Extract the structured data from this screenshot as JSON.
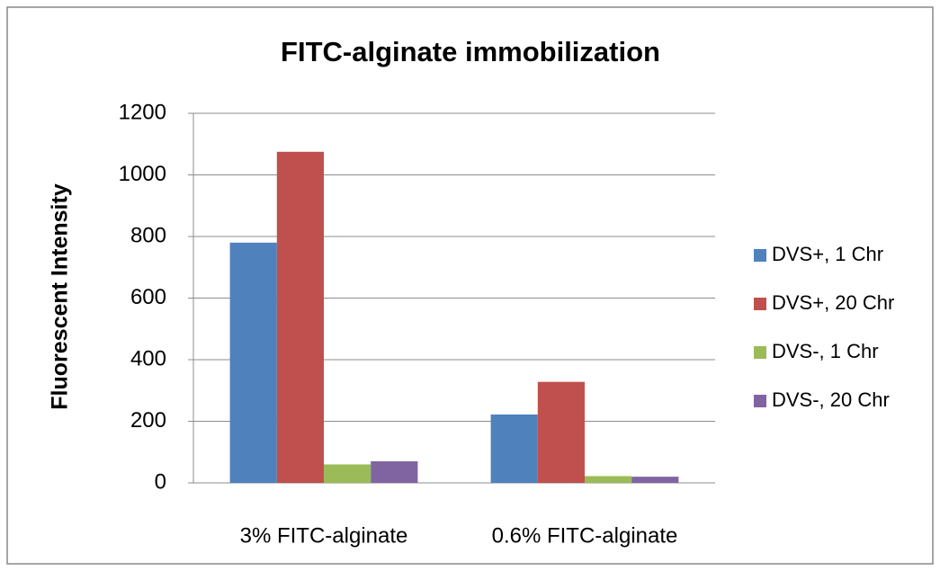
{
  "chart_data": {
    "type": "bar",
    "title": "FITC-alginate immobilization",
    "y_label": "Fluorescent Intensity",
    "categories": [
      "3% FITC-alginate",
      "0.6% FITC-alginate"
    ],
    "series": [
      {
        "name": "DVS+, 1 Chr",
        "color": "#4f81bd",
        "values": [
          780,
          222
        ]
      },
      {
        "name": "DVS+, 20 Chr",
        "color": "#c0504d",
        "values": [
          1075,
          328
        ]
      },
      {
        "name": "DVS-, 1 Chr",
        "color": "#9bbb59",
        "values": [
          60,
          22
        ]
      },
      {
        "name": "DVS-, 20 Chr",
        "color": "#8064a2",
        "values": [
          70,
          20
        ]
      }
    ],
    "ylim": [
      0,
      1200
    ],
    "yticks": [
      0,
      200,
      400,
      600,
      800,
      1000,
      1200
    ],
    "grid": true,
    "legend": "right"
  }
}
